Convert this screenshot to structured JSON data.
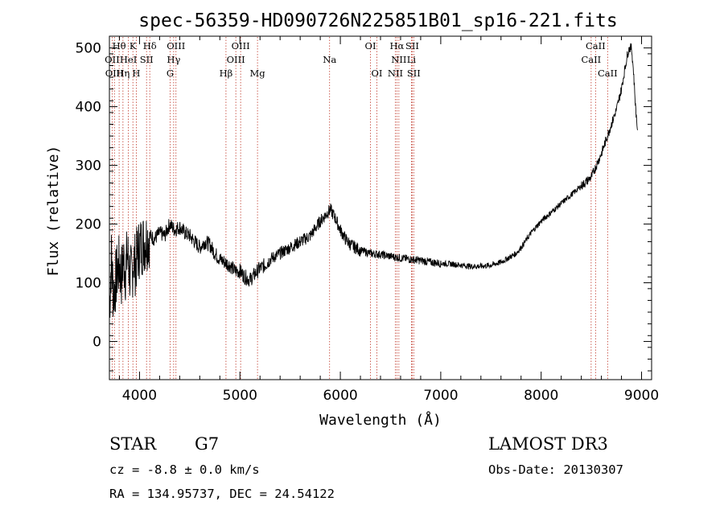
{
  "chart_data": {
    "type": "line",
    "title": "spec-56359-HD090726N225851B01_sp16-221.fits",
    "xlabel": "Wavelength (Å)",
    "ylabel": "Flux (relative)",
    "xlim": [
      3700,
      9100
    ],
    "ylim": [
      -65,
      520
    ],
    "xticks": [
      4000,
      5000,
      6000,
      7000,
      8000,
      9000
    ],
    "yticks": [
      0,
      100,
      200,
      300,
      400,
      500
    ],
    "xtick_labels": [
      "4000",
      "5000",
      "6000",
      "7000",
      "8000",
      "9000"
    ],
    "ytick_labels": [
      "0",
      "100",
      "200",
      "300",
      "400",
      "500"
    ],
    "series": [
      {
        "name": "flux",
        "x": [
          3700,
          3720,
          3740,
          3760,
          3780,
          3800,
          3820,
          3840,
          3860,
          3880,
          3900,
          3920,
          3940,
          3960,
          3980,
          4000,
          4050,
          4100,
          4150,
          4200,
          4250,
          4300,
          4350,
          4400,
          4450,
          4500,
          4550,
          4600,
          4650,
          4700,
          4750,
          4800,
          4850,
          4900,
          4950,
          5000,
          5050,
          5100,
          5150,
          5200,
          5250,
          5300,
          5400,
          5500,
          5600,
          5700,
          5800,
          5850,
          5900,
          5950,
          6000,
          6050,
          6100,
          6150,
          6200,
          6300,
          6400,
          6500,
          6600,
          6700,
          6800,
          6900,
          7000,
          7100,
          7200,
          7300,
          7400,
          7500,
          7600,
          7650,
          7700,
          7750,
          7800,
          7900,
          8000,
          8100,
          8200,
          8300,
          8400,
          8500,
          8550,
          8600,
          8650,
          8700,
          8750,
          8800,
          8830,
          8860,
          8880,
          8900,
          8920,
          8940,
          8960
        ],
        "values": [
          60,
          140,
          80,
          100,
          120,
          130,
          110,
          140,
          120,
          150,
          120,
          110,
          140,
          130,
          150,
          160,
          170,
          180,
          175,
          185,
          180,
          200,
          190,
          195,
          185,
          180,
          170,
          160,
          170,
          165,
          150,
          140,
          135,
          130,
          120,
          120,
          110,
          105,
          115,
          125,
          130,
          140,
          150,
          160,
          170,
          180,
          205,
          215,
          225,
          210,
          190,
          175,
          165,
          160,
          155,
          150,
          148,
          145,
          142,
          140,
          138,
          135,
          133,
          132,
          130,
          128,
          128,
          130,
          135,
          140,
          145,
          150,
          160,
          185,
          205,
          220,
          235,
          250,
          265,
          280,
          300,
          320,
          345,
          370,
          395,
          430,
          460,
          490,
          500,
          500,
          460,
          400,
          360
        ]
      }
    ],
    "emission_lines": [
      {
        "label": "Hθ",
        "x": 3797,
        "row": 1
      },
      {
        "label": "K",
        "x": 3934,
        "row": 1
      },
      {
        "label": "Hδ",
        "x": 4102,
        "row": 1
      },
      {
        "label": "OIII",
        "x": 4363,
        "row": 1
      },
      {
        "label": "OIII",
        "x": 5007,
        "row": 1
      },
      {
        "label": "OI",
        "x": 6300,
        "row": 1
      },
      {
        "label": "Hα",
        "x": 6563,
        "row": 1
      },
      {
        "label": "SII",
        "x": 6716,
        "row": 1
      },
      {
        "label": "CaII",
        "x": 8542,
        "row": 1
      },
      {
        "label": "OII",
        "x": 3727,
        "row": 2
      },
      {
        "label": "HeI",
        "x": 3889,
        "row": 2
      },
      {
        "label": "SII",
        "x": 4070,
        "row": 2
      },
      {
        "label": "Hγ",
        "x": 4340,
        "row": 2
      },
      {
        "label": "OIII",
        "x": 4959,
        "row": 2
      },
      {
        "label": "Na",
        "x": 5893,
        "row": 2
      },
      {
        "label": "NII",
        "x": 6583,
        "row": 2
      },
      {
        "label": "Li",
        "x": 6708,
        "row": 2
      },
      {
        "label": "CaII",
        "x": 8498,
        "row": 2
      },
      {
        "label": "OIII",
        "x": 3750,
        "row": 3
      },
      {
        "label": "Hη",
        "x": 3835,
        "row": 3
      },
      {
        "label": "H",
        "x": 3968,
        "row": 3
      },
      {
        "label": "G",
        "x": 4305,
        "row": 3
      },
      {
        "label": "Hβ",
        "x": 4861,
        "row": 3
      },
      {
        "label": "Mg",
        "x": 5175,
        "row": 3
      },
      {
        "label": "OI",
        "x": 6364,
        "row": 3
      },
      {
        "label": "NII",
        "x": 6548,
        "row": 3
      },
      {
        "label": "SII",
        "x": 6731,
        "row": 3
      },
      {
        "label": "CaII",
        "x": 8662,
        "row": 3
      }
    ]
  },
  "info": {
    "class_label": "STAR",
    "subclass_label": "G7",
    "survey": "LAMOST DR3",
    "cz": "cz = -8.8 ± 0.0 km/s",
    "obs_date": "Obs-Date: 20130307",
    "radec": "RA = 134.95737, DEC =  24.54122"
  }
}
